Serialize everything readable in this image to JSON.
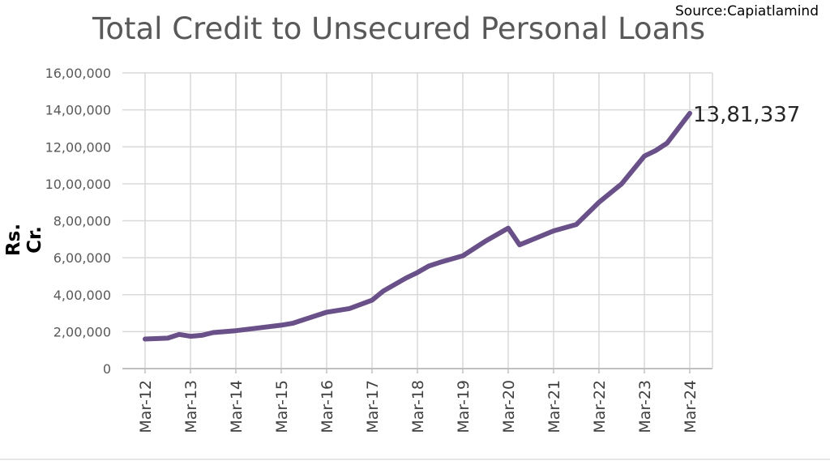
{
  "source_text": "Source:Capiatlamind",
  "chart_data": {
    "type": "line",
    "title": "Total Credit to Unsecured Personal Loans",
    "ylabel": "Rs. Cr.",
    "xlabel": "",
    "ylim": [
      0,
      1600000
    ],
    "yticks": [
      "0",
      "2,00,000",
      "4,00,000",
      "6,00,000",
      "8,00,000",
      "10,00,000",
      "12,00,000",
      "14,00,000",
      "16,00,000"
    ],
    "categories": [
      "Mar-12",
      "Mar-13",
      "Mar-14",
      "Mar-15",
      "Mar-16",
      "Mar-17",
      "Mar-18",
      "Mar-19",
      "Mar-20",
      "Mar-21",
      "Mar-22",
      "Mar-23",
      "Mar-24"
    ],
    "grid": true,
    "line_color": "#6a5088",
    "end_label": "13,81,337",
    "series": [
      {
        "x": [
          0,
          0.5,
          0.75,
          1,
          1.25,
          1.5,
          2,
          2.5,
          3,
          3.25,
          3.5,
          4,
          4.5,
          5,
          5.25,
          5.5,
          5.75,
          6,
          6.25,
          6.5,
          7,
          7.25,
          7.5,
          8,
          8.25,
          8.5,
          9,
          9.5,
          10,
          10.5,
          11,
          11.25,
          11.5,
          12
        ],
        "y": [
          160000,
          165000,
          185000,
          175000,
          180000,
          195000,
          205000,
          220000,
          235000,
          245000,
          265000,
          305000,
          325000,
          370000,
          420000,
          455000,
          490000,
          520000,
          555000,
          575000,
          610000,
          650000,
          690000,
          760000,
          670000,
          695000,
          745000,
          780000,
          900000,
          1000000,
          1150000,
          1180000,
          1220000,
          1381337
        ]
      }
    ]
  }
}
